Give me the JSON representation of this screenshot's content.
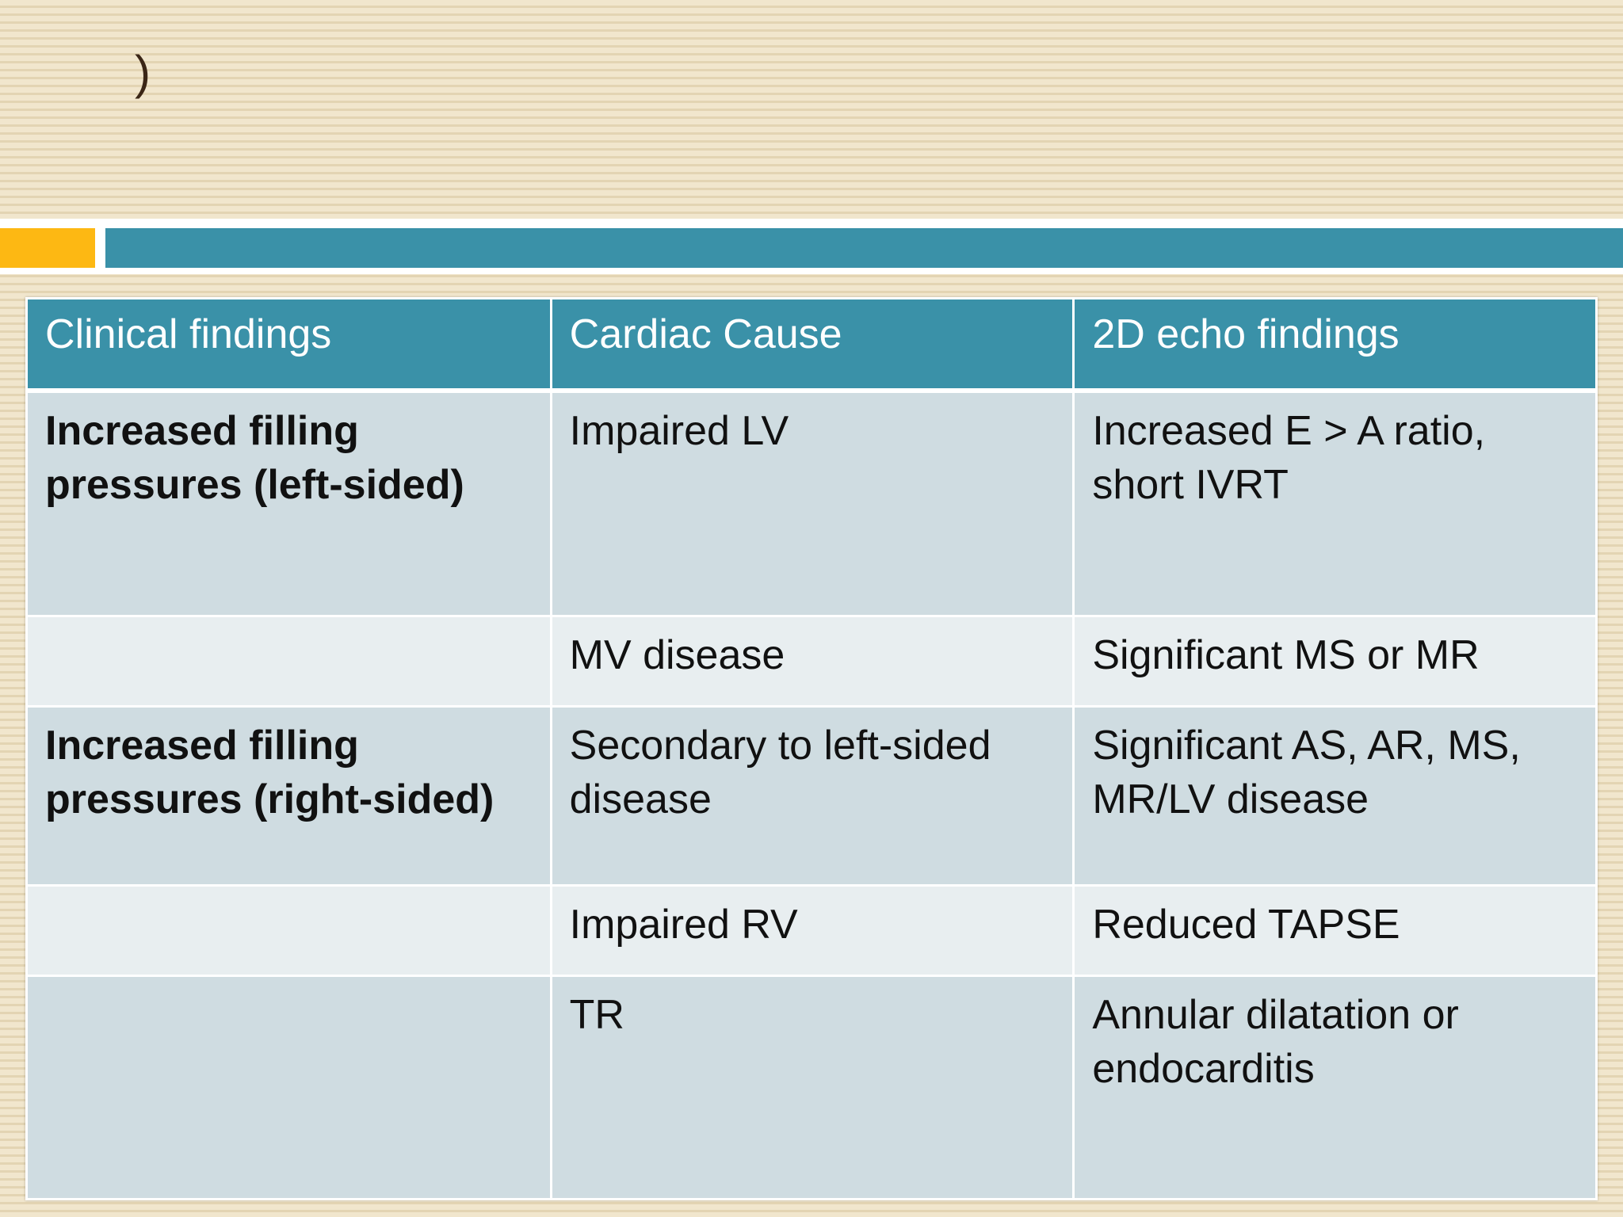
{
  "slide": {
    "title": ")"
  },
  "table": {
    "headers": [
      "Clinical findings",
      "Cardiac Cause",
      "2D echo findings"
    ],
    "rows": [
      [
        "Increased filling pressures (left-sided)",
        "Impaired LV",
        "Increased E > A ratio, short IVRT"
      ],
      [
        "",
        "MV disease",
        "Significant MS or MR"
      ],
      [
        "Increased filling pressures (right-sided)",
        "Secondary to left-sided disease",
        "Significant AS, AR, MS, MR/LV disease"
      ],
      [
        "",
        "Impaired RV",
        "Reduced TAPSE"
      ],
      [
        "",
        "TR",
        "Annular dilatation or endocarditis"
      ]
    ]
  },
  "colors": {
    "header_bg": "#3a91a8",
    "accent_orange": "#fdb813",
    "row_dark": "#cfdce1",
    "row_light": "#e8eef0"
  }
}
